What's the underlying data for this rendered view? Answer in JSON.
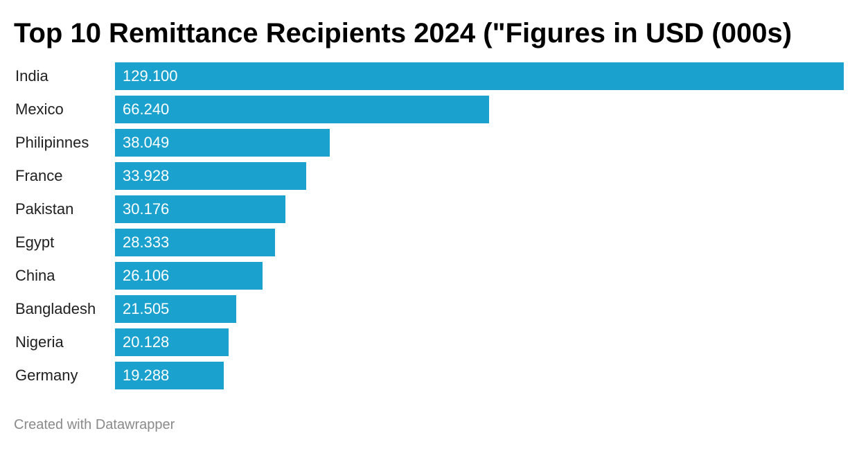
{
  "chart_data": {
    "type": "bar",
    "orientation": "horizontal",
    "title": "Top 10 Remittance Recipients 2024 (\"Figures in USD (000s)",
    "categories": [
      "India",
      "Mexico",
      "Philipinnes",
      "France",
      "Pakistan",
      "Egypt",
      "China",
      "Bangladesh",
      "Nigeria",
      "Germany"
    ],
    "values": [
      129.1,
      66.24,
      38.049,
      33.928,
      30.176,
      28.333,
      26.106,
      21.505,
      20.128,
      19.288
    ],
    "value_labels": [
      "129.100",
      "66.240",
      "38.049",
      "33.928",
      "30.176",
      "28.333",
      "26.106",
      "21.505",
      "20.128",
      "19.288"
    ],
    "xlim": [
      0,
      129.1
    ],
    "grid": false,
    "bar_color": "#1aa1cd"
  },
  "footer": {
    "credit": "Created with Datawrapper"
  }
}
